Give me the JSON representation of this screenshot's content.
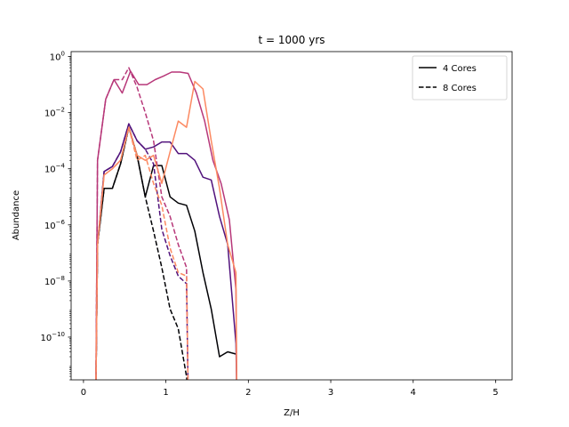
{
  "chart_data": {
    "type": "line",
    "title": "t = 1000 yrs",
    "xlabel": "Z/H",
    "ylabel": "Abundance",
    "xlim": [
      -0.15,
      5.2
    ],
    "ylim": [
      3e-12,
      1.5
    ],
    "yscale": "log",
    "x_ticks": [
      0,
      1,
      2,
      3,
      4,
      5
    ],
    "y_ticks": [
      1e-10,
      1e-08,
      1e-06,
      0.0001,
      0.01,
      1
    ],
    "y_tick_labels": [
      {
        "base": "10",
        "exp": "−10"
      },
      {
        "base": "10",
        "exp": "−8"
      },
      {
        "base": "10",
        "exp": "−6"
      },
      {
        "base": "10",
        "exp": "−4"
      },
      {
        "base": "10",
        "exp": "−2"
      },
      {
        "base": "10",
        "exp": "0"
      }
    ],
    "grid": false,
    "legend": {
      "position": "top-right",
      "entries": [
        {
          "label": "4 Cores",
          "style": "solid",
          "color": "#000000"
        },
        {
          "label": "8 Cores",
          "style": "dashed",
          "color": "#000000"
        }
      ]
    },
    "series": [
      {
        "color": "#000004",
        "style": "solid",
        "x": [
          0.15,
          0.17,
          0.25,
          0.35,
          0.45,
          0.55,
          0.65,
          0.75,
          0.85,
          0.95,
          1.05,
          1.15,
          1.25,
          1.35,
          1.45,
          1.55,
          1.65,
          1.75,
          1.85
        ],
        "y": [
          1e-12,
          2e-07,
          2e-05,
          2e-05,
          0.00015,
          0.003,
          0.0003,
          1e-05,
          0.00013,
          0.00013,
          1e-05,
          6e-06,
          5e-06,
          6e-07,
          2e-08,
          1e-09,
          2e-11,
          3e-11,
          2.5e-11
        ]
      },
      {
        "color": "#000004",
        "style": "dashed",
        "x": [
          0.15,
          0.17,
          0.25,
          0.35,
          0.45,
          0.55,
          0.65,
          0.75,
          0.85,
          0.95,
          1.05,
          1.15,
          1.25,
          1.27
        ],
        "y": [
          1e-12,
          2e-07,
          2e-05,
          2e-05,
          0.00015,
          0.003,
          0.0003,
          1e-05,
          6e-07,
          3e-08,
          1e-09,
          2e-10,
          4e-12,
          1e-12
        ]
      },
      {
        "color": "#51127c",
        "style": "solid",
        "x": [
          0.15,
          0.17,
          0.25,
          0.35,
          0.45,
          0.55,
          0.65,
          0.75,
          0.85,
          0.95,
          1.05,
          1.15,
          1.25,
          1.35,
          1.45,
          1.55,
          1.65,
          1.75,
          1.85,
          1.86
        ],
        "y": [
          1e-12,
          2e-07,
          8e-05,
          0.00012,
          0.0004,
          0.004,
          0.001,
          0.0005,
          0.0006,
          0.0009,
          0.0009,
          0.00035,
          0.00035,
          0.0002,
          5e-05,
          4e-05,
          2e-06,
          2e-07,
          6e-11,
          1e-12
        ]
      },
      {
        "color": "#51127c",
        "style": "dashed",
        "x": [
          0.15,
          0.17,
          0.25,
          0.35,
          0.45,
          0.55,
          0.65,
          0.75,
          0.85,
          0.95,
          1.05,
          1.15,
          1.25,
          1.27
        ],
        "y": [
          1e-12,
          2e-07,
          8e-05,
          0.00012,
          0.0004,
          0.004,
          0.001,
          0.0005,
          0.00015,
          7e-07,
          8e-08,
          1.5e-08,
          8e-09,
          1e-12
        ]
      },
      {
        "color": "#b73779",
        "style": "solid",
        "x": [
          0.15,
          0.17,
          0.27,
          0.37,
          0.47,
          0.57,
          0.67,
          0.77,
          0.87,
          0.97,
          1.07,
          1.17,
          1.27,
          1.37,
          1.47,
          1.57,
          1.67,
          1.77,
          1.85,
          1.86
        ],
        "y": [
          1e-12,
          0.0002,
          0.03,
          0.15,
          0.05,
          0.3,
          0.1,
          0.1,
          0.15,
          0.2,
          0.28,
          0.28,
          0.25,
          0.05,
          0.005,
          0.0002,
          3e-05,
          1.5e-06,
          5e-09,
          1e-12
        ]
      },
      {
        "color": "#b73779",
        "style": "dashed",
        "x": [
          0.15,
          0.17,
          0.27,
          0.37,
          0.47,
          0.55,
          0.65,
          0.75,
          0.85,
          0.95,
          1.05,
          1.15,
          1.25,
          1.27
        ],
        "y": [
          1e-12,
          0.0002,
          0.03,
          0.15,
          0.15,
          0.4,
          0.08,
          0.01,
          0.001,
          1e-05,
          2e-06,
          2e-07,
          3e-08,
          1e-12
        ]
      },
      {
        "color": "#fc8961",
        "style": "solid",
        "x": [
          0.15,
          0.17,
          0.25,
          0.35,
          0.45,
          0.55,
          0.65,
          0.75,
          0.85,
          0.95,
          1.05,
          1.15,
          1.25,
          1.35,
          1.45,
          1.55,
          1.65,
          1.75,
          1.85,
          1.86
        ],
        "y": [
          1e-12,
          2e-07,
          6e-05,
          0.0001,
          0.0002,
          0.003,
          0.0003,
          0.0002,
          0.0003,
          3e-05,
          0.0004,
          0.005,
          0.003,
          0.13,
          0.07,
          0.001,
          2e-05,
          2e-07,
          2e-08,
          1e-12
        ]
      },
      {
        "color": "#fc8961",
        "style": "dashed",
        "x": [
          0.15,
          0.17,
          0.25,
          0.35,
          0.45,
          0.55,
          0.65,
          0.75,
          0.85,
          0.95,
          1.05,
          1.15,
          1.25,
          1.27
        ],
        "y": [
          1e-12,
          2e-07,
          6e-05,
          0.0001,
          0.0002,
          0.003,
          0.0002,
          0.0003,
          3e-05,
          5e-06,
          1.5e-07,
          2e-08,
          1.5e-08,
          1e-12
        ]
      }
    ]
  }
}
